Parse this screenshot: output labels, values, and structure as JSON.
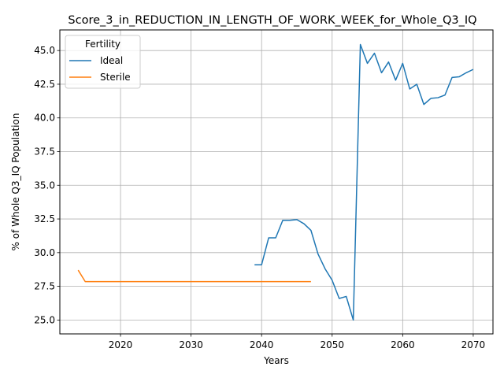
{
  "chart_data": {
    "type": "line",
    "title": "Score_3_in_REDUCTION_IN_LENGTH_OF_WORK_WEEK_for_Whole_Q3_IQ",
    "xlabel": "Years",
    "ylabel": "% of Whole Q3_IQ Population",
    "xlim": [
      2011.4,
      2072.8
    ],
    "ylim": [
      23.97,
      46.53
    ],
    "x_ticks": [
      2020,
      2030,
      2040,
      2050,
      2060,
      2070
    ],
    "y_ticks": [
      25.0,
      27.5,
      30.0,
      32.5,
      35.0,
      37.5,
      40.0,
      42.5,
      45.0
    ],
    "grid": true,
    "legend": {
      "title": "Fertility",
      "position": "top-left"
    },
    "series": [
      {
        "name": "Ideal",
        "color": "#1f77b4",
        "x": [
          2039,
          2040,
          2041,
          2042,
          2043,
          2044,
          2045,
          2046,
          2047,
          2048,
          2049,
          2050,
          2051,
          2052,
          2053,
          2054,
          2055,
          2056,
          2057,
          2058,
          2059,
          2060,
          2061,
          2062,
          2063,
          2064,
          2065,
          2066,
          2067,
          2068,
          2069,
          2070
        ],
        "y": [
          29.1,
          29.1,
          31.1,
          31.1,
          32.4,
          32.4,
          32.45,
          32.15,
          31.65,
          29.9,
          28.8,
          27.95,
          26.6,
          26.75,
          25.0,
          45.45,
          44.05,
          44.8,
          43.35,
          44.15,
          42.8,
          44.05,
          42.15,
          42.5,
          41.0,
          41.45,
          41.5,
          41.7,
          43.0,
          43.05,
          43.35,
          43.6
        ]
      },
      {
        "name": "Sterile",
        "color": "#ff7f0e",
        "x": [
          2014,
          2015,
          2016,
          2017,
          2018,
          2019,
          2020,
          2021,
          2022,
          2023,
          2024,
          2025,
          2026,
          2027,
          2028,
          2029,
          2030,
          2031,
          2032,
          2033,
          2034,
          2035,
          2036,
          2037,
          2038,
          2039,
          2040,
          2041,
          2042,
          2043,
          2044,
          2045,
          2046,
          2047
        ],
        "y": [
          28.7,
          27.85,
          27.85,
          27.85,
          27.85,
          27.85,
          27.85,
          27.85,
          27.85,
          27.85,
          27.85,
          27.85,
          27.85,
          27.85,
          27.85,
          27.85,
          27.85,
          27.85,
          27.85,
          27.85,
          27.85,
          27.85,
          27.85,
          27.85,
          27.85,
          27.85,
          27.85,
          27.85,
          27.85,
          27.85,
          27.85,
          27.85,
          27.85,
          27.85
        ]
      }
    ]
  }
}
